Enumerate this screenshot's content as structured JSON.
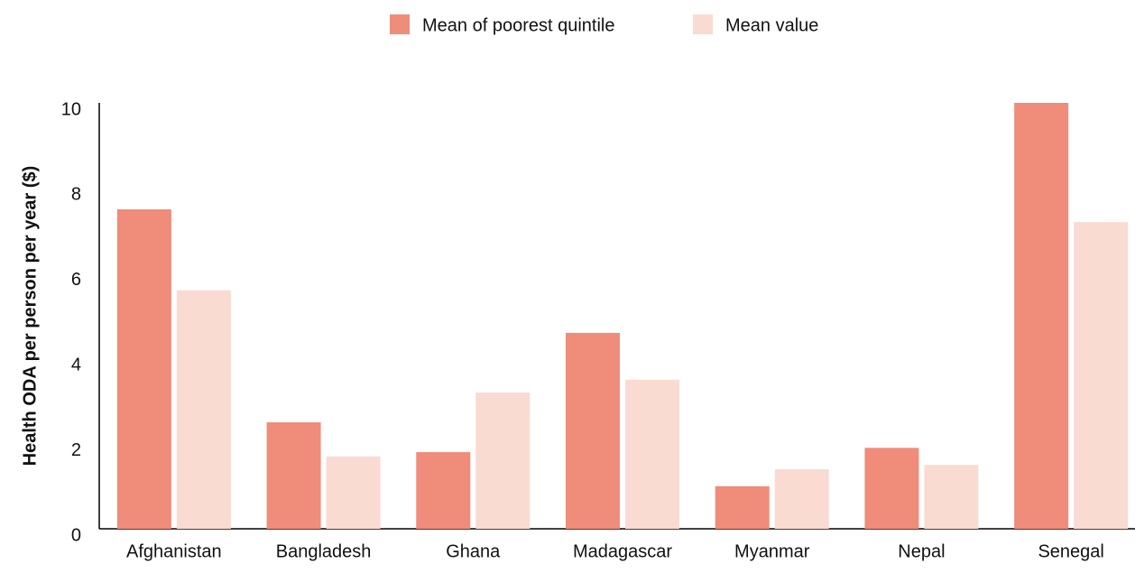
{
  "chart_data": {
    "type": "bar",
    "y_label": "Health ODA per person per year ($)",
    "categories": [
      "Afghanistan",
      "Bangladesh",
      "Ghana",
      "Madagascar",
      "Myanmar",
      "Nepal",
      "Senegal"
    ],
    "series": [
      {
        "name": "Mean of poorest quintile",
        "color": "#ef8c7a",
        "values": [
          7.5,
          2.5,
          1.8,
          4.6,
          1.0,
          1.9,
          10.0
        ]
      },
      {
        "name": "Mean value",
        "color": "#f9dbd2",
        "values": [
          5.6,
          1.7,
          3.2,
          3.5,
          1.4,
          1.5,
          7.2
        ]
      }
    ],
    "ylim": [
      0,
      10
    ],
    "yticks": [
      0,
      2,
      4,
      6,
      8,
      10
    ],
    "legend": "top"
  }
}
